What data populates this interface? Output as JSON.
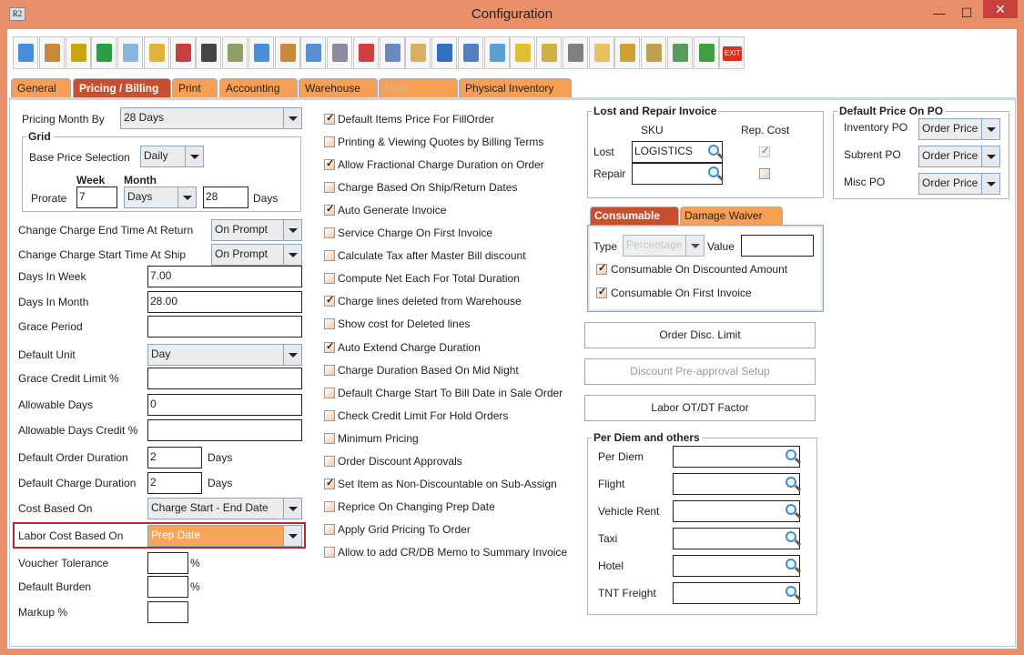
{
  "window": {
    "title": "Configuration",
    "app_icon": "R2",
    "minimize": "—",
    "maximize": "☐",
    "close": "✕"
  },
  "toolbar": {
    "icons": [
      "save-icon",
      "shipping-alert-icon",
      "coins-alert-icon",
      "invoice-alert-icon",
      "edit-document-icon",
      "form-alert-icon",
      "payment-alert-icon",
      "grid-alert-icon",
      "calculator-alert-icon",
      "lock-arrow-icon",
      "calendar-icon",
      "ruler-triangle-icon",
      "gears-icon",
      "color-cubes-icon",
      "gear-dollar-icon",
      "folder-clock-icon",
      "card-edit-icon",
      "document-cube-icon",
      "document-arrow-icon",
      "shield-icon",
      "shield-user-icon",
      "wrench-gear-icon",
      "clipboard-icon",
      "user-tool-icon",
      "folder-gear-icon",
      "calculator-gear-icon",
      "export-icon",
      "exit-icon"
    ],
    "colors": [
      "#4a8fd6",
      "#c58b3a",
      "#c9a514",
      "#2f9b45",
      "#8ab4e0",
      "#e0b43a",
      "#c84040",
      "#444444",
      "#8f9f6a",
      "#4a90d8",
      "#c48a40",
      "#5a8fd0",
      "#8a8aa0",
      "#d04040",
      "#6a8ac0",
      "#d8b060",
      "#3070c0",
      "#5080c0",
      "#60a0d0",
      "#e0c030",
      "#d0b040",
      "#808080",
      "#e8c060",
      "#d0a030",
      "#c0a050",
      "#5a9a5a",
      "#40a040",
      "#d83020"
    ],
    "exit_label": "EXIT"
  },
  "tabs": [
    {
      "label": "General"
    },
    {
      "label": "Pricing / Billing",
      "active": true
    },
    {
      "label": "Print"
    },
    {
      "label": "Accounting"
    },
    {
      "label": "Warehouse"
    },
    {
      "label": "Multi Currency",
      "disabled": true
    },
    {
      "label": "Physical Inventory"
    }
  ],
  "left": {
    "pricing_month_by": {
      "label": "Pricing Month By",
      "value": "28 Days"
    },
    "grid": {
      "title": "Grid",
      "base_price_label": "Base Price Selection",
      "base_price_value": "Daily",
      "week_header": "Week",
      "month_header": "Month",
      "prorate_label": "Prorate",
      "week_value": "7",
      "month_unit": "Days",
      "month_value": "28",
      "days_label": "Days"
    },
    "change_end": {
      "label": "Change Charge End Time At Return",
      "value": "On Prompt"
    },
    "change_start": {
      "label": "Change Charge Start Time At Ship",
      "value": "On Prompt"
    },
    "days_in_week": {
      "label": "Days In Week",
      "value": "7.00"
    },
    "days_in_month": {
      "label": "Days In Month",
      "value": "28.00"
    },
    "grace_period": {
      "label": "Grace Period",
      "value": ""
    },
    "default_unit": {
      "label": "Default Unit",
      "value": "Day"
    },
    "grace_credit": {
      "label": "Grace Credit Limit %",
      "value": ""
    },
    "allowable_days": {
      "label": "Allowable Days",
      "value": "0"
    },
    "allowable_credit": {
      "label": "Allowable Days Credit %",
      "value": ""
    },
    "default_order_duration": {
      "label": "Default Order Duration",
      "value": "2",
      "unit": "Days"
    },
    "default_charge_duration": {
      "label": "Default Charge Duration",
      "value": "2",
      "unit": "Days"
    },
    "cost_based_on": {
      "label": "Cost Based On",
      "value": "Charge Start - End Date"
    },
    "labor_cost_based_on": {
      "label": "Labor Cost Based On",
      "value": "Prep Date"
    },
    "voucher_tolerance": {
      "label": "Voucher Tolerance",
      "value": "",
      "unit": "%"
    },
    "default_burden": {
      "label": "Default Burden",
      "value": "",
      "unit": "%"
    },
    "markup": {
      "label": "Markup %",
      "value": ""
    }
  },
  "options": [
    {
      "label": "Default Items Price For FillOrder",
      "checked": true
    },
    {
      "label": "Printing & Viewing Quotes by Billing Terms",
      "checked": false
    },
    {
      "label": "Allow Fractional Charge Duration on Order",
      "checked": true
    },
    {
      "label": "Charge Based On Ship/Return Dates",
      "checked": false
    },
    {
      "label": "Auto Generate Invoice",
      "checked": true
    },
    {
      "label": "Service Charge On First Invoice",
      "checked": false
    },
    {
      "label": "Calculate Tax after Master Bill discount",
      "checked": false
    },
    {
      "label": "Compute Net Each For Total Duration",
      "checked": false
    },
    {
      "label": "Charge lines deleted from Warehouse",
      "checked": true
    },
    {
      "label": "Show cost for Deleted lines",
      "checked": false
    },
    {
      "label": "Auto Extend Charge Duration",
      "checked": true
    },
    {
      "label": "Charge Duration Based On Mid Night",
      "checked": false
    },
    {
      "label": "Default Charge Start To Bill Date in Sale Order",
      "checked": false
    },
    {
      "label": "Check Credit Limit For Hold Orders",
      "checked": false
    },
    {
      "label": "Minimum Pricing",
      "checked": false
    },
    {
      "label": "Order Discount Approvals",
      "checked": false
    },
    {
      "label": "Set Item as Non-Discountable on Sub-Assign",
      "checked": true
    },
    {
      "label": "Reprice On Changing Prep Date",
      "checked": false
    },
    {
      "label": "Apply Grid Pricing To Order",
      "checked": false
    },
    {
      "label": "Allow to add CR/DB Memo to Summary Invoice",
      "checked": false
    }
  ],
  "lost_repair": {
    "title": "Lost and Repair Invoice",
    "sku_header": "SKU",
    "rep_cost_header": "Rep. Cost",
    "lost_label": "Lost",
    "lost_value": "LOGISTICS",
    "lost_rep_cost": true,
    "repair_label": "Repair",
    "repair_value": "",
    "repair_rep_cost": false
  },
  "default_price_po": {
    "title": "Default Price On PO",
    "inventory_label": "Inventory PO",
    "inventory_value": "Order Price",
    "subrent_label": "Subrent PO",
    "subrent_value": "Order Price",
    "misc_label": "Misc PO",
    "misc_value": "Order Price"
  },
  "consumable": {
    "tab_consumable": "Consumable",
    "tab_damage": "Damage Waiver",
    "type_label": "Type",
    "type_value": "Percentage",
    "value_label": "Value",
    "value": "",
    "on_discounted": "Consumable On Discounted Amount",
    "on_discounted_checked": true,
    "on_first_invoice": "Consumable On First Invoice",
    "on_first_invoice_checked": true
  },
  "buttons": {
    "order_disc_limit": "Order Disc. Limit",
    "discount_preapproval": "Discount Pre-approval Setup",
    "labor_factor": "Labor OT/DT Factor"
  },
  "per_diem": {
    "title": "Per Diem and others",
    "items": [
      {
        "label": "Per Diem",
        "value": ""
      },
      {
        "label": "Flight",
        "value": ""
      },
      {
        "label": "Vehicle Rent",
        "value": ""
      },
      {
        "label": "Taxi",
        "value": ""
      },
      {
        "label": "Hotel",
        "value": ""
      },
      {
        "label": "TNT Freight",
        "value": ""
      }
    ]
  },
  "colors": {
    "frame": "#e9906a",
    "tab": "#f7a055",
    "tab_active": "#c84e2e",
    "highlight_field": "#f7a55a",
    "highlight_border": "#c0242a"
  }
}
